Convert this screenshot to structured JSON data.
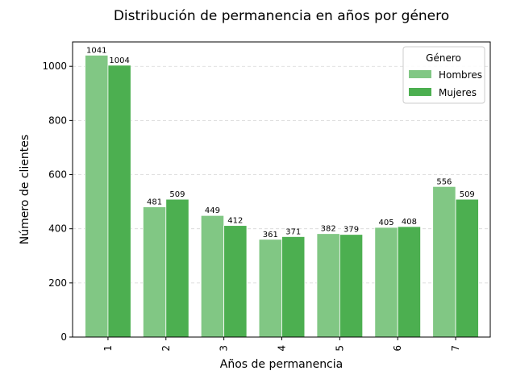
{
  "chart_data": {
    "type": "bar",
    "title": "Distribución de permanencia en años por género",
    "xlabel": "Años de permanencia",
    "ylabel": "Número de clientes",
    "categories": [
      "1",
      "2",
      "3",
      "4",
      "5",
      "6",
      "7"
    ],
    "series": [
      {
        "name": "Hombres",
        "color": "#81c784",
        "values": [
          1041,
          481,
          449,
          361,
          382,
          405,
          556
        ]
      },
      {
        "name": "Mujeres",
        "color": "#4caf50",
        "values": [
          1004,
          509,
          412,
          371,
          379,
          408,
          509
        ]
      }
    ],
    "ylim": [
      0,
      1090
    ],
    "yticks": [
      0,
      200,
      400,
      600,
      800,
      1000
    ],
    "grid": "y-dashed",
    "legend": {
      "title": "Género",
      "placement": "top-right"
    }
  }
}
